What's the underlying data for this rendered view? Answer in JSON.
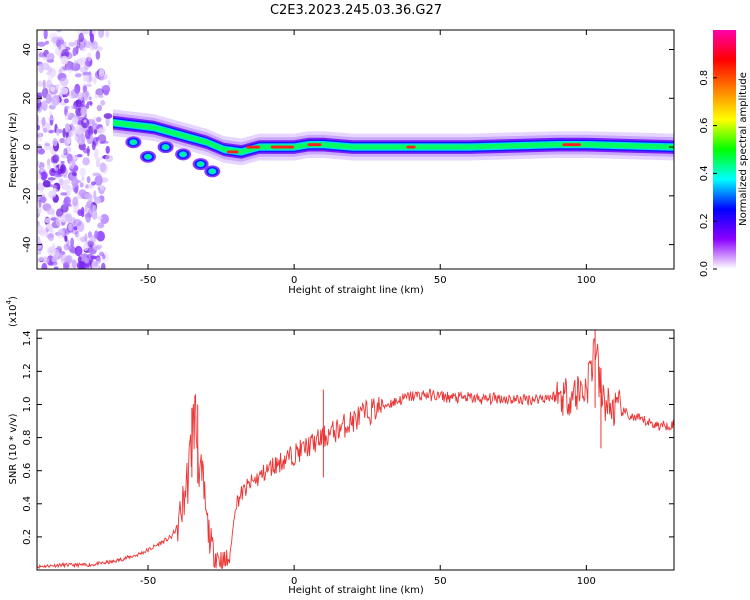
{
  "title": "C2E3.2023.245.03.36.G27",
  "chart_data": [
    {
      "type": "heatmap",
      "xlabel": "Height of straight line (km)",
      "ylabel": "Frequency (Hz)",
      "xlim": [
        -88,
        130
      ],
      "ylim": [
        -50,
        48
      ],
      "x_ticks": [
        -50,
        0,
        50,
        100
      ],
      "y_ticks": [
        40,
        20,
        0,
        -20,
        -40
      ],
      "colorbar": {
        "label": "Normalized spectral amplitude",
        "range": [
          0,
          1
        ],
        "ticks": [
          0.0,
          0.2,
          0.4,
          0.6,
          0.8
        ],
        "colors": [
          "#ffffff",
          "#8b00ff",
          "#0000ff",
          "#00ffff",
          "#00ff00",
          "#ffff00",
          "#ff8000",
          "#ff0000",
          "#ff00aa"
        ]
      },
      "ridge_frequency_hz": [
        {
          "x": -62,
          "f": 10
        },
        {
          "x": -55,
          "f": 9
        },
        {
          "x": -48,
          "f": 8
        },
        {
          "x": -42,
          "f": 6
        },
        {
          "x": -36,
          "f": 4
        },
        {
          "x": -30,
          "f": 2
        },
        {
          "x": -24,
          "f": -1
        },
        {
          "x": -18,
          "f": -2
        },
        {
          "x": -12,
          "f": 0
        },
        {
          "x": 0,
          "f": 0
        },
        {
          "x": 5,
          "f": 1
        },
        {
          "x": 10,
          "f": 1
        },
        {
          "x": 20,
          "f": 0
        },
        {
          "x": 40,
          "f": 0
        },
        {
          "x": 60,
          "f": 0
        },
        {
          "x": 90,
          "f": 1
        },
        {
          "x": 100,
          "f": 1
        },
        {
          "x": 130,
          "f": 0
        }
      ],
      "lower_branch_frequency_hz": [
        {
          "x": -55,
          "f": 2
        },
        {
          "x": -50,
          "f": -4
        },
        {
          "x": -44,
          "f": 0
        },
        {
          "x": -38,
          "f": -3
        },
        {
          "x": -32,
          "f": -7
        },
        {
          "x": -28,
          "f": -10
        }
      ],
      "noise_region_km": [
        -88,
        -62
      ]
    },
    {
      "type": "line",
      "xlabel": "Height of straight line (km)",
      "ylabel": "SNR (10 * v/v)",
      "y_multiplier": "(x10",
      "y_multiplier_exp": "4",
      "y_multiplier_close": ")",
      "xlim": [
        -88,
        130
      ],
      "ylim": [
        0,
        1.45
      ],
      "x_ticks": [
        -50,
        0,
        50,
        100
      ],
      "y_ticks": [
        0.2,
        0.4,
        0.6,
        0.8,
        1.0,
        1.2,
        1.4
      ],
      "color": "#ee3333",
      "series": [
        {
          "x": [
            -88,
            -80,
            -70,
            -62,
            -58,
            -54,
            -50,
            -46,
            -42,
            -40,
            -38,
            -36,
            -35,
            -34,
            -33,
            -32,
            -31,
            -30,
            -28,
            -26,
            -24,
            -22,
            -20,
            -18,
            -15,
            -12,
            -8,
            -4,
            0,
            5,
            10,
            15,
            20,
            25,
            30,
            35,
            40,
            45,
            50,
            55,
            60,
            65,
            70,
            75,
            80,
            85,
            90,
            95,
            100,
            102,
            103,
            104,
            105,
            108,
            112,
            116,
            120,
            125,
            130
          ],
          "y": [
            0.02,
            0.03,
            0.03,
            0.05,
            0.07,
            0.09,
            0.12,
            0.16,
            0.2,
            0.26,
            0.4,
            0.6,
            0.8,
            0.95,
            0.75,
            0.55,
            0.5,
            0.3,
            0.12,
            0.08,
            0.04,
            0.08,
            0.4,
            0.46,
            0.52,
            0.56,
            0.62,
            0.66,
            0.7,
            0.75,
            0.8,
            0.85,
            0.9,
            0.95,
            0.99,
            1.02,
            1.05,
            1.06,
            1.05,
            1.04,
            1.04,
            1.03,
            1.04,
            1.03,
            1.03,
            1.04,
            1.05,
            1.06,
            1.1,
            1.25,
            1.4,
            1.2,
            1.05,
            0.98,
            0.96,
            0.92,
            0.9,
            0.87,
            0.88
          ]
        }
      ],
      "peaks": [
        {
          "x": -33,
          "y": 1.0
        },
        {
          "x": -35,
          "y": 0.98
        },
        {
          "x": 10,
          "y": 1.09
        },
        {
          "x": 103,
          "y": 1.45
        },
        {
          "x": 105,
          "y": 1.22
        }
      ]
    }
  ]
}
